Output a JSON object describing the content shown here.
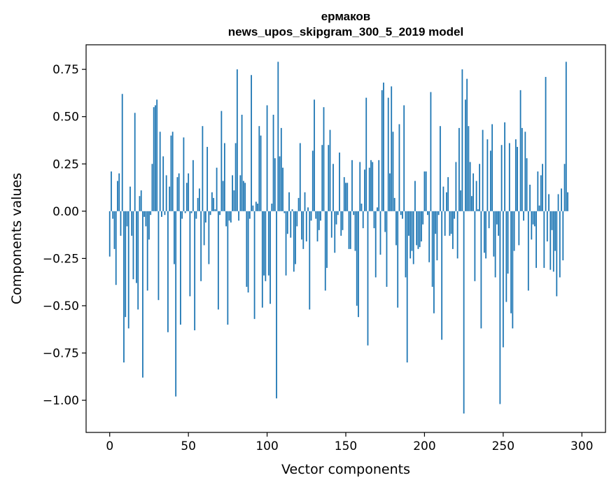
{
  "chart_data": {
    "type": "bar",
    "title_line1": "ермаков",
    "title_line2": "news_upos_skipgram_300_5_2019 model",
    "xlabel": "Vector components",
    "ylabel": "Components values",
    "xlim": [
      -15,
      315
    ],
    "ylim": [
      -1.17,
      0.88
    ],
    "xticks": [
      0,
      50,
      100,
      150,
      200,
      250,
      300
    ],
    "xtick_labels": [
      "0",
      "50",
      "100",
      "150",
      "200",
      "250",
      "300"
    ],
    "yticks": [
      0.75,
      0.5,
      0.25,
      0.0,
      -0.25,
      -0.5,
      -0.75,
      -1.0
    ],
    "ytick_labels": [
      "0.75",
      "0.50",
      "0.25",
      "0.00",
      "−0.25",
      "−0.50",
      "−0.75",
      "−1.00"
    ],
    "bar_color": "#1f77b4",
    "values": [
      -0.24,
      0.21,
      -0.04,
      -0.2,
      -0.39,
      0.16,
      0.2,
      -0.13,
      0.62,
      -0.8,
      -0.56,
      -0.08,
      -0.62,
      0.13,
      -0.13,
      -0.36,
      0.52,
      -0.38,
      -0.52,
      0.08,
      0.11,
      -0.88,
      -0.03,
      -0.08,
      -0.42,
      -0.15,
      -0.02,
      0.25,
      0.55,
      0.56,
      0.59,
      -0.47,
      0.42,
      -0.03,
      0.29,
      -0.02,
      0.19,
      -0.64,
      0.13,
      0.4,
      0.42,
      -0.28,
      -0.98,
      0.18,
      0.2,
      -0.6,
      -0.04,
      0.39,
      -0.01,
      0.15,
      0.2,
      -0.45,
      -0.01,
      0.27,
      -0.63,
      -0.04,
      0.07,
      0.12,
      -0.37,
      0.45,
      -0.18,
      -0.06,
      0.34,
      -0.28,
      -0.02,
      0.1,
      0.07,
      0.01,
      0.23,
      -0.52,
      -0.02,
      0.53,
      0.16,
      0.36,
      -0.08,
      -0.6,
      -0.05,
      -0.06,
      0.19,
      0.11,
      0.36,
      0.75,
      -0.05,
      0.19,
      0.51,
      0.16,
      0.15,
      -0.4,
      -0.43,
      -0.04,
      0.72,
      0.03,
      -0.57,
      0.05,
      0.04,
      0.45,
      0.4,
      -0.51,
      -0.34,
      -0.37,
      0.56,
      -0.34,
      -0.49,
      0.04,
      0.51,
      0.28,
      -0.99,
      0.79,
      0.29,
      0.44,
      0.23,
      -0.01,
      -0.34,
      -0.12,
      0.1,
      -0.14,
      0.01,
      -0.32,
      -0.28,
      -0.08,
      0.07,
      0.36,
      -0.15,
      -0.2,
      0.1,
      -0.16,
      0.02,
      -0.52,
      -0.05,
      0.32,
      0.59,
      -0.04,
      -0.16,
      -0.1,
      -0.05,
      0.35,
      0.55,
      -0.42,
      -0.3,
      0.35,
      0.43,
      -0.14,
      0.25,
      -0.22,
      -0.07,
      -0.02,
      0.31,
      -0.13,
      -0.1,
      0.18,
      0.15,
      0.15,
      -0.2,
      -0.2,
      0.27,
      -0.02,
      -0.21,
      -0.5,
      -0.56,
      0.26,
      0.04,
      -0.09,
      0.22,
      0.6,
      -0.71,
      0.23,
      0.27,
      0.26,
      -0.09,
      -0.35,
      0.02,
      0.27,
      -0.23,
      0.64,
      0.68,
      -0.11,
      -0.4,
      0.6,
      0.2,
      0.66,
      0.42,
      0.07,
      -0.18,
      -0.51,
      0.46,
      -0.02,
      -0.04,
      0.56,
      -0.35,
      -0.8,
      -0.13,
      -0.25,
      -0.21,
      -0.28,
      0.16,
      -0.18,
      -0.2,
      -0.19,
      -0.16,
      -0.07,
      0.21,
      0.21,
      -0.02,
      -0.27,
      0.63,
      -0.4,
      -0.54,
      -0.12,
      -0.26,
      -0.02,
      0.45,
      -0.68,
      0.13,
      -0.13,
      0.1,
      0.18,
      -0.13,
      -0.12,
      -0.2,
      -0.04,
      0.26,
      -0.25,
      0.44,
      0.11,
      0.75,
      -1.07,
      0.59,
      0.7,
      0.45,
      0.26,
      0.08,
      0.2,
      -0.37,
      0.16,
      0.01,
      0.25,
      -0.62,
      0.43,
      -0.22,
      -0.25,
      0.38,
      -0.09,
      0.32,
      0.46,
      -0.24,
      -0.35,
      -0.07,
      -0.13,
      -1.02,
      0.35,
      -0.72,
      0.47,
      -0.48,
      -0.33,
      0.36,
      -0.54,
      -0.62,
      -0.21,
      0.38,
      0.34,
      -0.18,
      0.64,
      0.44,
      -0.05,
      0.42,
      0.28,
      -0.42,
      0.14,
      -0.15,
      -0.07,
      -0.08,
      -0.3,
      0.21,
      0.03,
      0.19,
      0.25,
      -0.3,
      0.71,
      -0.16,
      0.09,
      -0.31,
      -0.1,
      -0.32,
      -0.21,
      -0.45,
      0.09,
      -0.35,
      0.12,
      -0.26,
      0.25,
      0.79,
      0.1
    ]
  }
}
